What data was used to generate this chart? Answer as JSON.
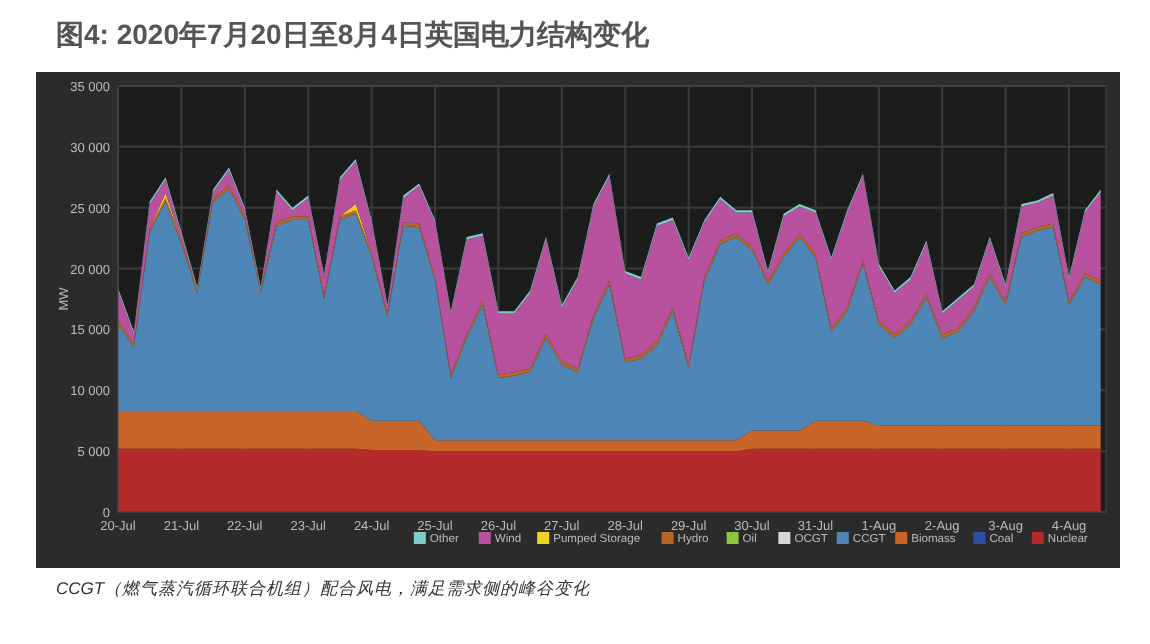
{
  "chart_data": {
    "type": "area",
    "stacked": true,
    "title": "图4: 2020年7月20日至8月4日英国电力结构变化",
    "ylabel": "MW",
    "annotations": [
      "CCGT（燃气蒸汽循环联合机组）配合风电，满足需求侧的峰谷变化"
    ],
    "x": [
      "2020-07-20T00:00",
      "2020-07-20T06:00",
      "2020-07-20T12:00",
      "2020-07-20T18:00",
      "2020-07-21T00:00",
      "2020-07-21T06:00",
      "2020-07-21T12:00",
      "2020-07-21T18:00",
      "2020-07-22T00:00",
      "2020-07-22T06:00",
      "2020-07-22T12:00",
      "2020-07-22T18:00",
      "2020-07-23T00:00",
      "2020-07-23T06:00",
      "2020-07-23T12:00",
      "2020-07-23T18:00",
      "2020-07-24T00:00",
      "2020-07-24T06:00",
      "2020-07-24T12:00",
      "2020-07-24T18:00",
      "2020-07-25T00:00",
      "2020-07-25T06:00",
      "2020-07-25T12:00",
      "2020-07-25T18:00",
      "2020-07-26T00:00",
      "2020-07-26T06:00",
      "2020-07-26T12:00",
      "2020-07-26T18:00",
      "2020-07-27T00:00",
      "2020-07-27T06:00",
      "2020-07-27T12:00",
      "2020-07-27T18:00",
      "2020-07-28T00:00",
      "2020-07-28T06:00",
      "2020-07-28T12:00",
      "2020-07-28T18:00",
      "2020-07-29T00:00",
      "2020-07-29T06:00",
      "2020-07-29T12:00",
      "2020-07-29T18:00",
      "2020-07-30T00:00",
      "2020-07-30T06:00",
      "2020-07-30T12:00",
      "2020-07-30T18:00",
      "2020-07-31T00:00",
      "2020-07-31T06:00",
      "2020-07-31T12:00",
      "2020-07-31T18:00",
      "2020-08-01T00:00",
      "2020-08-01T06:00",
      "2020-08-01T12:00",
      "2020-08-01T18:00",
      "2020-08-02T00:00",
      "2020-08-02T06:00",
      "2020-08-02T12:00",
      "2020-08-02T18:00",
      "2020-08-03T00:00",
      "2020-08-03T06:00",
      "2020-08-03T12:00",
      "2020-08-03T18:00",
      "2020-08-04T00:00",
      "2020-08-04T06:00",
      "2020-08-04T12:00"
    ],
    "xlim": [
      "2020-07-20T00:00",
      "2020-08-04T14:00"
    ],
    "xticks": [
      {
        "value": "2020-07-20",
        "label": "20-Jul"
      },
      {
        "value": "2020-07-21",
        "label": "21-Jul"
      },
      {
        "value": "2020-07-22",
        "label": "22-Jul"
      },
      {
        "value": "2020-07-23",
        "label": "23-Jul"
      },
      {
        "value": "2020-07-24",
        "label": "24-Jul"
      },
      {
        "value": "2020-07-25",
        "label": "25-Jul"
      },
      {
        "value": "2020-07-26",
        "label": "26-Jul"
      },
      {
        "value": "2020-07-27",
        "label": "27-Jul"
      },
      {
        "value": "2020-07-28",
        "label": "28-Jul"
      },
      {
        "value": "2020-07-29",
        "label": "29-Jul"
      },
      {
        "value": "2020-07-30",
        "label": "30-Jul"
      },
      {
        "value": "2020-07-31",
        "label": "31-Jul"
      },
      {
        "value": "2020-08-01",
        "label": "1-Aug"
      },
      {
        "value": "2020-08-02",
        "label": "2-Aug"
      },
      {
        "value": "2020-08-03",
        "label": "3-Aug"
      },
      {
        "value": "2020-08-04",
        "label": "4-Aug"
      }
    ],
    "ylim": [
      0,
      35000
    ],
    "yticks": [
      0,
      {
        "value": 5000,
        "label": "5 000"
      },
      {
        "value": 10000,
        "label": "10 000"
      },
      {
        "value": 15000,
        "label": "15 000"
      },
      {
        "value": 20000,
        "label": "20 000"
      },
      {
        "value": 25000,
        "label": "25 000"
      },
      {
        "value": 30000,
        "label": "30 000"
      },
      {
        "value": 35000,
        "label": "35 000"
      }
    ],
    "grid": true,
    "legend": "bottom",
    "series": [
      {
        "name": "Nuclear",
        "color": "#b52a2a",
        "values": [
          5200,
          5200,
          5200,
          5200,
          5200,
          5200,
          5200,
          5200,
          5200,
          5200,
          5200,
          5200,
          5200,
          5200,
          5200,
          5200,
          5100,
          5100,
          5100,
          5100,
          5000,
          5000,
          5000,
          5000,
          5000,
          5000,
          5000,
          5000,
          5000,
          5000,
          5000,
          5000,
          5000,
          5000,
          5000,
          5000,
          5000,
          5000,
          5000,
          5000,
          5200,
          5200,
          5200,
          5200,
          5200,
          5200,
          5200,
          5200,
          5200,
          5200,
          5200,
          5200,
          5200,
          5200,
          5200,
          5200,
          5200,
          5200,
          5200,
          5200,
          5200,
          5200,
          5200
        ]
      },
      {
        "name": "Coal",
        "color": "#2b4fa3",
        "values": [
          null,
          null,
          null,
          null,
          null,
          null,
          null,
          null,
          null,
          null,
          null,
          null,
          null,
          null,
          null,
          null,
          null,
          null,
          null,
          null,
          null,
          null,
          null,
          null,
          null,
          null,
          null,
          null,
          null,
          null,
          null,
          null,
          null,
          null,
          null,
          null,
          null,
          null,
          null,
          null,
          null,
          null,
          null,
          null,
          null,
          null,
          null,
          null,
          null,
          null,
          null,
          null,
          null,
          null,
          null,
          null,
          null,
          null,
          null,
          null,
          null,
          null,
          null
        ]
      },
      {
        "name": "Biomass",
        "color": "#c8662a",
        "values": [
          3100,
          3100,
          3100,
          3100,
          3100,
          3100,
          3100,
          3100,
          3100,
          3100,
          3100,
          3100,
          3100,
          3100,
          3100,
          3100,
          2400,
          2400,
          2400,
          2400,
          900,
          900,
          900,
          900,
          900,
          900,
          900,
          900,
          900,
          900,
          900,
          900,
          900,
          900,
          900,
          900,
          900,
          900,
          900,
          900,
          1500,
          1500,
          1500,
          1500,
          2300,
          2300,
          2300,
          2300,
          1900,
          1900,
          1900,
          1900,
          1900,
          1900,
          1900,
          1900,
          1900,
          1900,
          1900,
          1900,
          1900,
          1900,
          1900
        ]
      },
      {
        "name": "CCGT",
        "color": "#4f86b8",
        "values": [
          7200,
          5200,
          14700,
          17200,
          13700,
          9700,
          17200,
          18200,
          15700,
          9700,
          15200,
          15700,
          15700,
          9200,
          15700,
          16200,
          13500,
          8500,
          16000,
          15900,
          13100,
          5100,
          8400,
          11100,
          5100,
          5300,
          5600,
          8400,
          6200,
          5600,
          10000,
          12800,
          6400,
          6700,
          7800,
          10600,
          5900,
          13100,
          16100,
          16700,
          14800,
          12000,
          14200,
          15900,
          13400,
          7300,
          9000,
          12900,
          8300,
          7200,
          8300,
          10500,
          7200,
          7700,
          9400,
          12200,
          9900,
          15500,
          16000,
          16300,
          9900,
          12200,
          11600
        ]
      },
      {
        "name": "OCGT",
        "color": "#d8d8d8",
        "values": [
          null,
          null,
          null,
          null,
          null,
          null,
          null,
          null,
          null,
          null,
          null,
          null,
          null,
          null,
          null,
          null,
          null,
          null,
          null,
          null,
          null,
          null,
          null,
          null,
          null,
          null,
          null,
          null,
          null,
          null,
          null,
          null,
          null,
          null,
          null,
          null,
          null,
          null,
          null,
          null,
          null,
          null,
          null,
          null,
          null,
          null,
          null,
          null,
          null,
          null,
          null,
          null,
          null,
          null,
          null,
          null,
          null,
          null,
          null,
          null,
          null,
          null,
          null
        ]
      },
      {
        "name": "Oil",
        "color": "#8cc63f",
        "values": [
          null,
          null,
          null,
          null,
          null,
          null,
          null,
          null,
          null,
          null,
          null,
          null,
          null,
          null,
          null,
          null,
          null,
          null,
          null,
          null,
          null,
          null,
          null,
          null,
          null,
          null,
          null,
          null,
          null,
          null,
          null,
          null,
          null,
          null,
          null,
          null,
          null,
          null,
          null,
          null,
          null,
          null,
          null,
          null,
          null,
          null,
          null,
          null,
          null,
          null,
          null,
          null,
          null,
          null,
          null,
          null,
          null,
          null,
          null,
          null,
          null,
          null,
          null
        ]
      },
      {
        "name": "Hydro",
        "color": "#b8652a",
        "values": [
          300,
          300,
          300,
          300,
          300,
          300,
          300,
          300,
          300,
          300,
          300,
          300,
          300,
          300,
          300,
          300,
          300,
          300,
          300,
          300,
          300,
          300,
          300,
          300,
          300,
          300,
          300,
          300,
          300,
          300,
          300,
          300,
          300,
          300,
          300,
          300,
          300,
          300,
          300,
          300,
          300,
          300,
          300,
          300,
          300,
          300,
          300,
          300,
          300,
          300,
          300,
          300,
          300,
          300,
          300,
          300,
          300,
          300,
          300,
          300,
          300,
          300,
          300
        ]
      },
      {
        "name": "Pumped Storage",
        "color": "#f0d020",
        "values": [
          0,
          0,
          0,
          400,
          0,
          0,
          0,
          0,
          0,
          0,
          0,
          0,
          0,
          0,
          0,
          500,
          0,
          0,
          0,
          0,
          0,
          0,
          0,
          0,
          0,
          0,
          0,
          0,
          0,
          0,
          0,
          0,
          0,
          0,
          0,
          0,
          0,
          0,
          0,
          0,
          0,
          0,
          0,
          0,
          0,
          0,
          0,
          0,
          0,
          0,
          0,
          0,
          0,
          0,
          0,
          0,
          0,
          0,
          0,
          0,
          0,
          0,
          0
        ]
      },
      {
        "name": "Wind",
        "color": "#b8529e",
        "values": [
          2400,
          800,
          2000,
          1100,
          500,
          0,
          500,
          1300,
          500,
          0,
          2500,
          500,
          1500,
          1500,
          3000,
          3500,
          2500,
          500,
          2000,
          3100,
          4500,
          5000,
          7800,
          5400,
          5000,
          4800,
          6200,
          7800,
          4400,
          7300,
          8900,
          8600,
          7000,
          6200,
          9500,
          7200,
          8600,
          4500,
          3400,
          1700,
          2800,
          600,
          3100,
          2200,
          3400,
          5600,
          7800,
          6900,
          4500,
          3400,
          3400,
          4200,
          1700,
          2300,
          1700,
          2800,
          1200,
          2200,
          2000,
          2300,
          1800,
          5000,
          7300
        ]
      },
      {
        "name": "Other",
        "color": "#7fcccc",
        "values": [
          200,
          200,
          200,
          200,
          200,
          200,
          200,
          200,
          200,
          200,
          200,
          200,
          200,
          200,
          200,
          200,
          200,
          200,
          200,
          200,
          200,
          200,
          200,
          200,
          200,
          200,
          200,
          200,
          200,
          200,
          200,
          200,
          200,
          200,
          200,
          200,
          200,
          200,
          200,
          200,
          200,
          200,
          200,
          200,
          200,
          200,
          200,
          200,
          200,
          200,
          200,
          200,
          200,
          200,
          200,
          200,
          200,
          200,
          200,
          200,
          200,
          200,
          200
        ]
      }
    ]
  }
}
